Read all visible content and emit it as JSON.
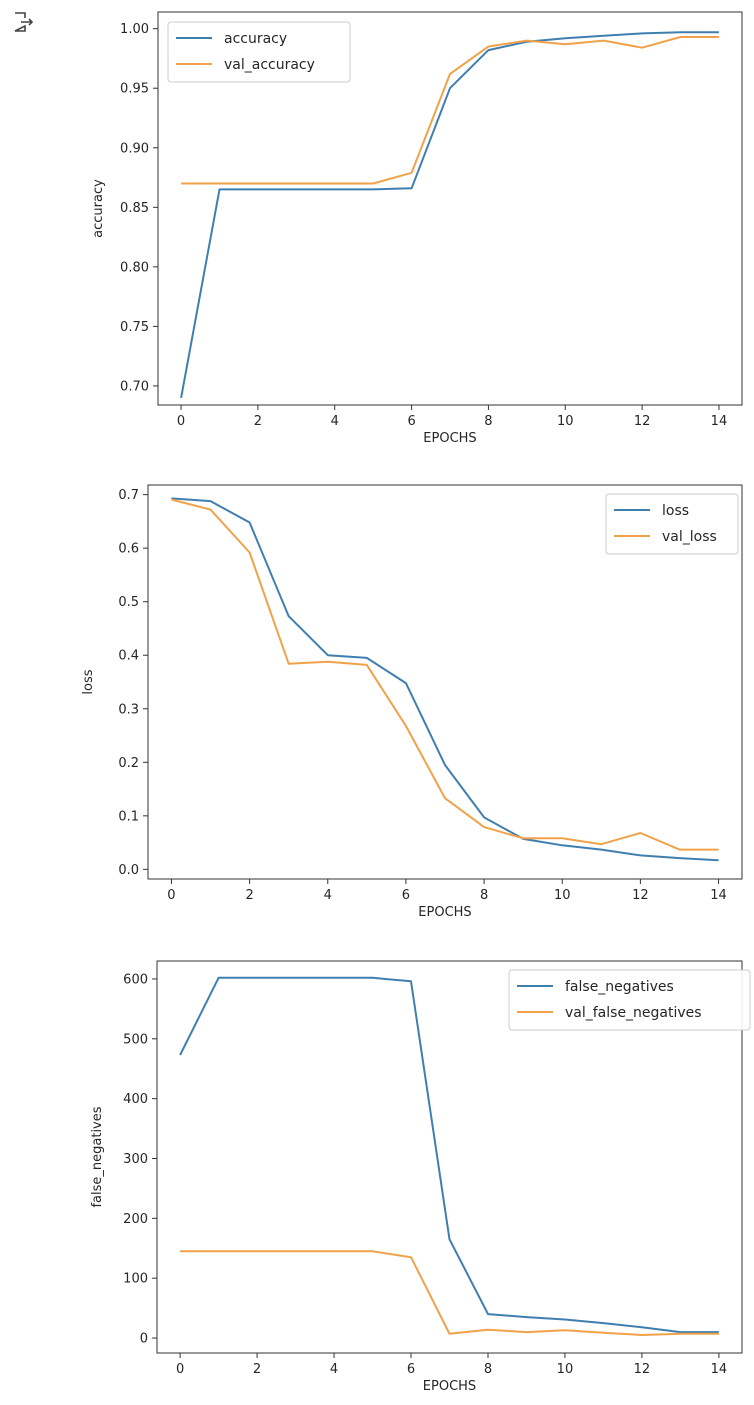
{
  "output_icon": "output-arrow-icon",
  "colors": {
    "series1": "#3f7fb0",
    "series2": "#f0a24a",
    "axes": "#333333"
  },
  "chart_data": [
    {
      "type": "line",
      "xlabel": "EPOCHS",
      "ylabel": "accuracy",
      "xlim": [
        -0.6,
        14.6
      ],
      "ylim": [
        0.684,
        1.014
      ],
      "xticks": [
        0,
        2,
        4,
        6,
        8,
        10,
        12,
        14
      ],
      "yticks": [
        0.7,
        0.75,
        0.8,
        0.85,
        0.9,
        0.95,
        1.0
      ],
      "ytick_decimals": 2,
      "legend_position": "upper-left",
      "x": [
        0,
        1,
        2,
        3,
        4,
        5,
        6,
        7,
        8,
        9,
        10,
        11,
        12,
        13,
        14
      ],
      "series": [
        {
          "name": "accuracy",
          "values": [
            0.69,
            0.865,
            0.865,
            0.865,
            0.865,
            0.865,
            0.866,
            0.95,
            0.982,
            0.989,
            0.992,
            0.994,
            0.996,
            0.997,
            0.997
          ]
        },
        {
          "name": "val_accuracy",
          "values": [
            0.87,
            0.87,
            0.87,
            0.87,
            0.87,
            0.87,
            0.879,
            0.962,
            0.985,
            0.99,
            0.987,
            0.99,
            0.984,
            0.993,
            0.993
          ]
        }
      ]
    },
    {
      "type": "line",
      "xlabel": "EPOCHS",
      "ylabel": "loss",
      "xlim": [
        -0.6,
        14.6
      ],
      "ylim": [
        -0.018,
        0.718
      ],
      "xticks": [
        0,
        2,
        4,
        6,
        8,
        10,
        12,
        14
      ],
      "yticks": [
        0.0,
        0.1,
        0.2,
        0.3,
        0.4,
        0.5,
        0.6,
        0.7
      ],
      "ytick_decimals": 1,
      "legend_position": "upper-right",
      "x": [
        0,
        1,
        2,
        3,
        4,
        5,
        6,
        7,
        8,
        9,
        10,
        11,
        12,
        13,
        14
      ],
      "series": [
        {
          "name": "loss",
          "values": [
            0.693,
            0.688,
            0.648,
            0.473,
            0.4,
            0.395,
            0.348,
            0.195,
            0.097,
            0.057,
            0.045,
            0.037,
            0.026,
            0.021,
            0.017
          ]
        },
        {
          "name": "val_loss",
          "values": [
            0.691,
            0.672,
            0.592,
            0.384,
            0.388,
            0.382,
            0.268,
            0.133,
            0.079,
            0.058,
            0.058,
            0.047,
            0.068,
            0.037,
            0.037
          ]
        }
      ]
    },
    {
      "type": "line",
      "xlabel": "EPOCHS",
      "ylabel": "false_negatives",
      "xlim": [
        -0.6,
        14.6
      ],
      "ylim": [
        -25,
        630
      ],
      "xticks": [
        0,
        2,
        4,
        6,
        8,
        10,
        12,
        14
      ],
      "yticks": [
        0,
        100,
        200,
        300,
        400,
        500,
        600
      ],
      "ytick_decimals": 0,
      "legend_position": "upper-right",
      "x": [
        0,
        1,
        2,
        3,
        4,
        5,
        6,
        7,
        8,
        9,
        10,
        11,
        12,
        13,
        14
      ],
      "series": [
        {
          "name": "false_negatives",
          "values": [
            473,
            602,
            602,
            602,
            602,
            602,
            596,
            165,
            40,
            35,
            31,
            25,
            18,
            10,
            10
          ]
        },
        {
          "name": "val_false_negatives",
          "values": [
            145,
            145,
            145,
            145,
            145,
            145,
            135,
            7,
            14,
            10,
            13,
            9,
            5,
            7,
            7
          ]
        }
      ]
    }
  ]
}
